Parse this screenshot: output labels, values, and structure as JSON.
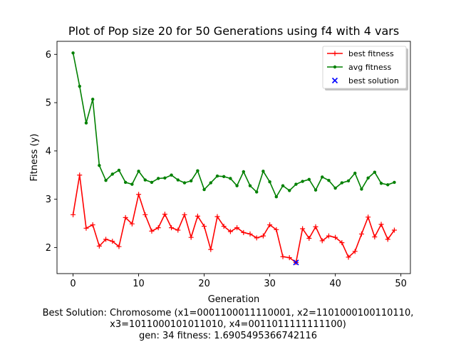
{
  "chart_data": {
    "type": "line",
    "title": "Plot of Pop size 20 for 50 Generations using f4 with 4 vars",
    "xlabel": "Generation",
    "ylabel": "Fitness (y)",
    "xlim": [
      -2.45,
      51.45
    ],
    "ylim": [
      1.46,
      6.27
    ],
    "xticks": [
      0,
      10,
      20,
      30,
      40,
      50
    ],
    "yticks": [
      2,
      3,
      4,
      5,
      6
    ],
    "grid": false,
    "legend_position": "top-right",
    "x": [
      0,
      1,
      2,
      3,
      4,
      5,
      6,
      7,
      8,
      9,
      10,
      11,
      12,
      13,
      14,
      15,
      16,
      17,
      18,
      19,
      20,
      21,
      22,
      23,
      24,
      25,
      26,
      27,
      28,
      29,
      30,
      31,
      32,
      33,
      34,
      35,
      36,
      37,
      38,
      39,
      40,
      41,
      42,
      43,
      44,
      45,
      46,
      47,
      48,
      49
    ],
    "series": [
      {
        "name": "best fitness",
        "color": "#ff0000",
        "marker": "plus",
        "values": [
          2.68,
          3.5,
          2.4,
          2.47,
          2.03,
          2.17,
          2.13,
          2.02,
          2.62,
          2.49,
          3.1,
          2.68,
          2.34,
          2.41,
          2.69,
          2.41,
          2.36,
          2.68,
          2.21,
          2.65,
          2.44,
          1.96,
          2.64,
          2.44,
          2.33,
          2.41,
          2.31,
          2.28,
          2.2,
          2.24,
          2.47,
          2.37,
          1.81,
          1.79,
          1.69,
          2.39,
          2.19,
          2.43,
          2.14,
          2.24,
          2.21,
          2.1,
          1.8,
          1.92,
          2.28,
          2.63,
          2.22,
          2.48,
          2.17,
          2.36
        ]
      },
      {
        "name": "avg fitness",
        "color": "#008000",
        "marker": "dot",
        "values": [
          6.03,
          5.34,
          4.58,
          5.07,
          3.7,
          3.39,
          3.52,
          3.6,
          3.35,
          3.31,
          3.58,
          3.4,
          3.35,
          3.43,
          3.44,
          3.5,
          3.4,
          3.34,
          3.38,
          3.59,
          3.2,
          3.34,
          3.48,
          3.47,
          3.43,
          3.28,
          3.57,
          3.28,
          3.15,
          3.58,
          3.36,
          3.05,
          3.28,
          3.18,
          3.31,
          3.37,
          3.41,
          3.19,
          3.46,
          3.39,
          3.23,
          3.34,
          3.38,
          3.54,
          3.21,
          3.44,
          3.56,
          3.33,
          3.3,
          3.35
        ]
      },
      {
        "name": "best solution",
        "color": "#0000ff",
        "marker": "x",
        "x": [
          34
        ],
        "values": [
          1.6905495366742116
        ]
      }
    ]
  },
  "caption": {
    "line1": "Best Solution: Chromosome (x1=0001100011110001, x2=1101000100110110,",
    "line2": "x3=1011000101011010, x4=0011011111111100)",
    "line3": "gen: 34 fitness: 1.6905495366742116"
  }
}
